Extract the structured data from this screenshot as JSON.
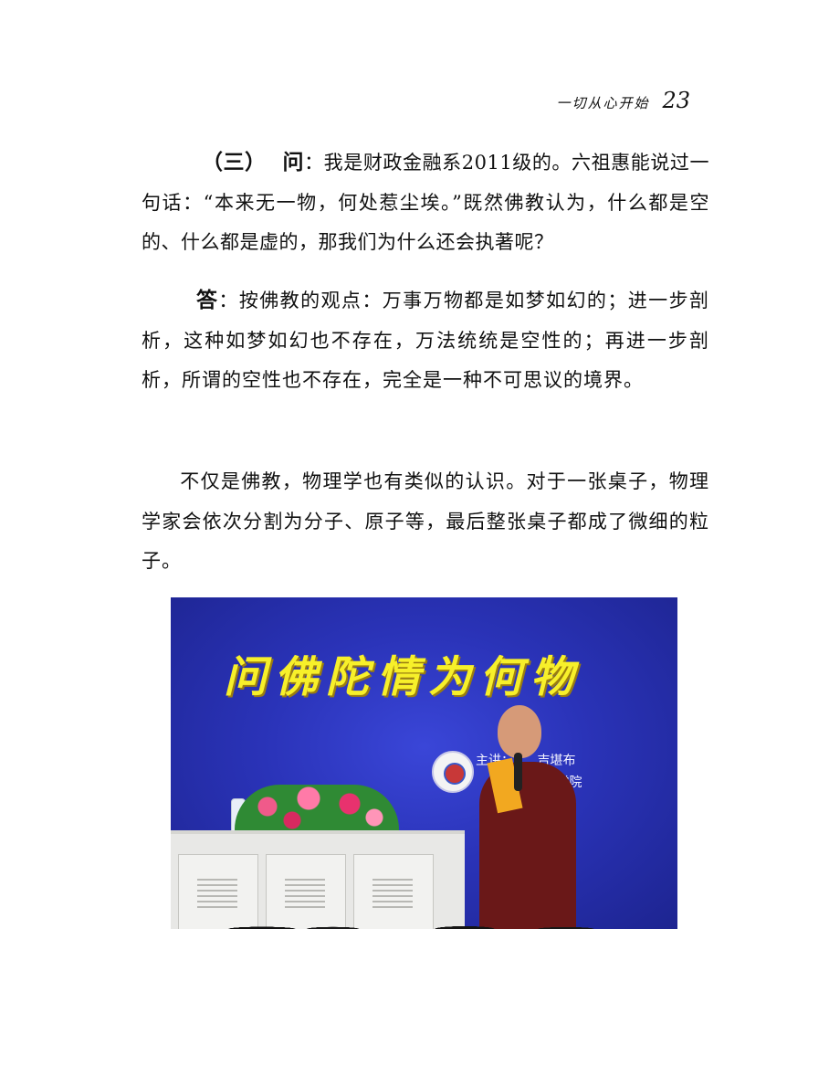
{
  "header": {
    "running_title": "一切从心开始",
    "page_number": "23"
  },
  "question": {
    "section_no": "（三）",
    "label": "问",
    "text": "：我是财政金融系2011级的。六祖惠能说过一句话：“本来无一物，何处惹尘埃。”既然佛教认为，什么都是空的、什么都是虚的，那我们为什么还会执著呢？"
  },
  "answer": {
    "label": "答",
    "text": "：按佛教的观点：万事万物都是如梦如幻的；进一步剖析，这种如梦如幻也不存在，万法统统是空性的；再进一步剖析，所谓的空性也不存在，完全是一种不可思议的境界。"
  },
  "continuation": {
    "text": "不仅是佛教，物理学也有类似的认识。对于一张桌子，物理学家会依次分割为分子、原子等，最后整张桌子都成了微细的粒子。"
  },
  "photo": {
    "banner_title": "问佛陀情为何物",
    "banner_line1": "主讲：　　 吉堪布",
    "banner_line2": "　　　　 嘉庚学院"
  }
}
